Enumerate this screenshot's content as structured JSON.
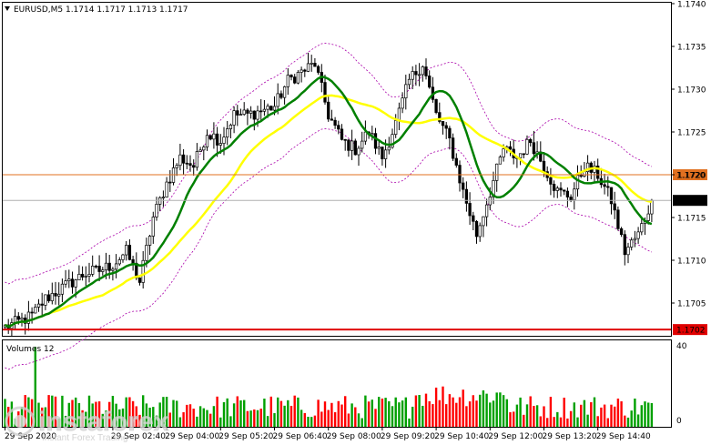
{
  "chart_data": {
    "type": "candlestick",
    "title": "EURUSD,M5  1.1714 1.1717 1.1713 1.1717",
    "ylim": [
      1.17,
      1.174
    ],
    "yticks": [
      "1.1740",
      "1.1735",
      "1.1730",
      "1.1725",
      "1.1720",
      "1.1715",
      "1.1710",
      "1.1705"
    ],
    "xticks": [
      "29 Sep 2020",
      "29 Sep 02:40",
      "29 Sep 04:00",
      "29 Sep 05:20",
      "29 Sep 06:40",
      "29 Sep 08:00",
      "29 Sep 09:20",
      "29 Sep 10:40",
      "29 Sep 12:00",
      "29 Sep 13:20",
      "29 Sep 14:40"
    ],
    "x_start": "29 Sep 00:00",
    "bar_interval_min": 5,
    "price_labels": {
      "current": "1.1717",
      "orange_level": "1.1720",
      "red_level": "1.1702"
    },
    "levels": {
      "current": 1.1717,
      "orange": 1.172,
      "red": 1.17019
    },
    "ma_fast_color": "#008000",
    "ma_slow_color": "#ffff00",
    "envelope_color": "#aa00aa",
    "volume": {
      "label": "Volumes 12",
      "ylim": [
        0,
        40
      ],
      "yticks": [
        "40",
        "0"
      ],
      "up_color": "#00a000",
      "down_color": "#ff0000"
    },
    "anchors": {
      "x": [
        0,
        4,
        8,
        12,
        16,
        20,
        24,
        28,
        32,
        36,
        40,
        44,
        48,
        52,
        56,
        60,
        64,
        68,
        72,
        76,
        80,
        84,
        88,
        92,
        96,
        100,
        104,
        108,
        112,
        116,
        120,
        124,
        128,
        132,
        136,
        140,
        144,
        148,
        152,
        156,
        160,
        164,
        168,
        172,
        176,
        180,
        184,
        188,
        192
      ],
      "close": [
        1.17022,
        1.17028,
        1.17035,
        1.17055,
        1.17065,
        1.17075,
        1.17085,
        1.17088,
        1.17095,
        1.1711,
        1.17075,
        1.1715,
        1.1719,
        1.1722,
        1.1721,
        1.1725,
        1.1724,
        1.1727,
        1.1727,
        1.17275,
        1.1728,
        1.1731,
        1.1732,
        1.1733,
        1.1727,
        1.1724,
        1.1723,
        1.1725,
        1.1722,
        1.1726,
        1.1731,
        1.1733,
        1.1727,
        1.1724,
        1.1718,
        1.1713,
        1.1718,
        1.1723,
        1.1722,
        1.1724,
        1.1721,
        1.1718,
        1.17175,
        1.1721,
        1.172,
        1.1717,
        1.1711,
        1.1713,
        1.1717
      ]
    }
  },
  "watermark": {
    "brand": "instaforex",
    "tagline": "Instant Forex Trading"
  }
}
